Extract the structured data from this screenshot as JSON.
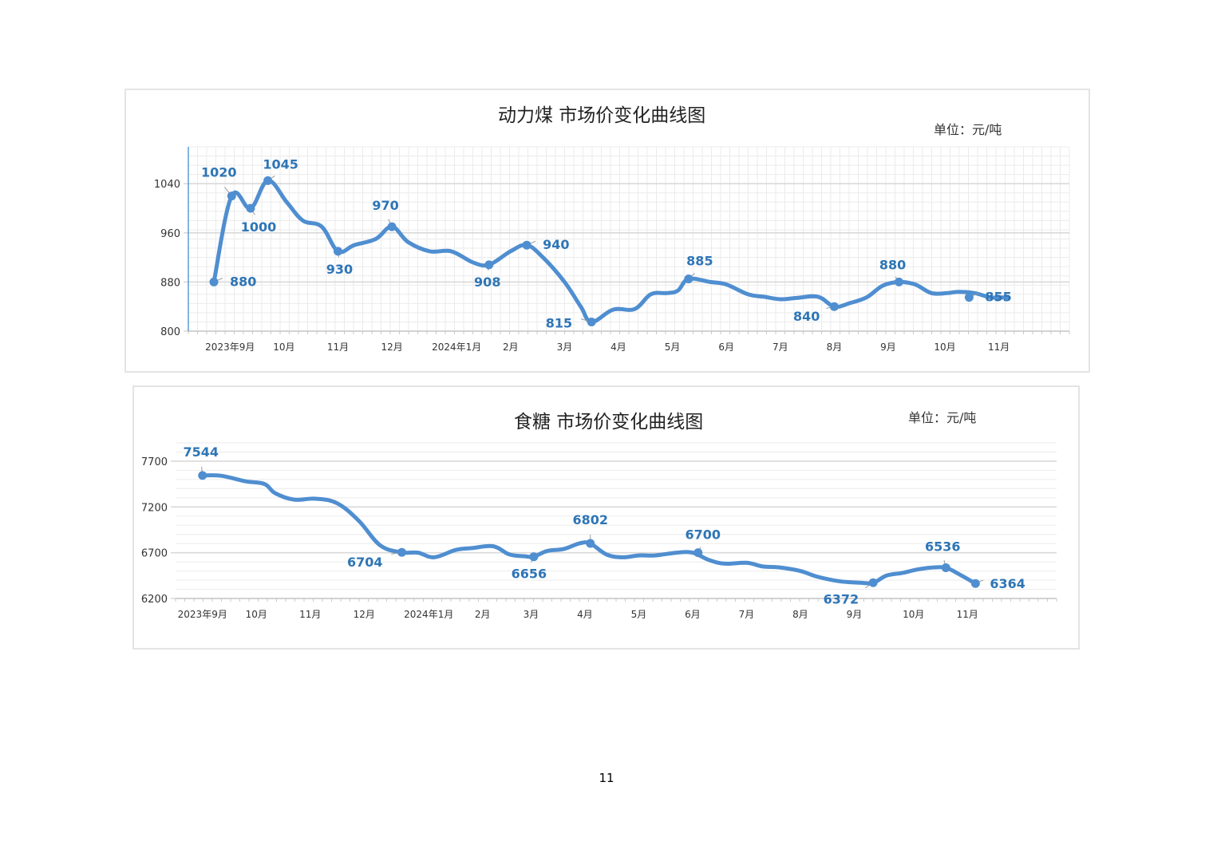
{
  "page_number": "11",
  "chart_data": [
    {
      "type": "line",
      "title": "动力煤  市场价变化曲线图",
      "unit": "单位：元/吨",
      "line_color": "#4f8ed0",
      "label_color": "#2e75b6",
      "grid": "minor",
      "ylim": [
        800,
        1100
      ],
      "y_ticks": [
        800,
        880,
        960,
        1040
      ],
      "x_range": [
        0,
        16.7
      ],
      "x_tick_labels": [
        {
          "x": 0.3,
          "label": "2023年9月"
        },
        {
          "x": 1.3,
          "label": "10月"
        },
        {
          "x": 2.3,
          "label": "11月"
        },
        {
          "x": 3.3,
          "label": "12月"
        },
        {
          "x": 4.5,
          "label": "2024年1月"
        },
        {
          "x": 5.5,
          "label": "2月"
        },
        {
          "x": 6.5,
          "label": "3月"
        },
        {
          "x": 7.5,
          "label": "4月"
        },
        {
          "x": 8.5,
          "label": "5月"
        },
        {
          "x": 9.5,
          "label": "6月"
        },
        {
          "x": 10.5,
          "label": "7月"
        },
        {
          "x": 11.5,
          "label": "8月"
        },
        {
          "x": 12.5,
          "label": "9月"
        },
        {
          "x": 13.55,
          "label": "10月"
        },
        {
          "x": 14.55,
          "label": "11月"
        }
      ],
      "series": [
        {
          "x": [
            0,
            0.33,
            0.68,
            1.0,
            1.35,
            1.65,
            2.0,
            2.3,
            2.6,
            3.0,
            3.3,
            3.6,
            4.0,
            4.4,
            4.8,
            5.1,
            5.5,
            5.8,
            6.1,
            6.5,
            6.8,
            7.0,
            7.4,
            7.8,
            8.1,
            8.4,
            8.6,
            8.8,
            9.2,
            9.5,
            9.9,
            10.2,
            10.5,
            10.8,
            11.2,
            11.5,
            11.8,
            12.1,
            12.4,
            12.7,
            13.0,
            13.3,
            13.6,
            13.8,
            14.1,
            14.4,
            14.7
          ],
          "values": [
            880,
            1020,
            1000,
            1045,
            1010,
            980,
            970,
            930,
            940,
            950,
            970,
            945,
            930,
            930,
            912,
            908,
            930,
            940,
            920,
            880,
            840,
            815,
            835,
            836,
            860,
            862,
            866,
            885,
            880,
            876,
            860,
            856,
            852,
            854,
            856,
            840,
            846,
            855,
            874,
            880,
            876,
            862,
            862,
            864,
            862,
            855,
            855
          ]
        }
      ],
      "markers": [
        {
          "x": 0,
          "value": 880,
          "label": "880"
        },
        {
          "x": 0.33,
          "value": 1020,
          "label": "1020"
        },
        {
          "x": 0.68,
          "value": 1000,
          "label": "1000"
        },
        {
          "x": 1.0,
          "value": 1045,
          "label": "1045"
        },
        {
          "x": 2.3,
          "value": 930,
          "label": "930"
        },
        {
          "x": 3.3,
          "value": 970,
          "label": "970"
        },
        {
          "x": 5.1,
          "value": 908,
          "label": "908"
        },
        {
          "x": 5.8,
          "value": 940,
          "label": "940"
        },
        {
          "x": 7.0,
          "value": 815,
          "label": "815"
        },
        {
          "x": 8.8,
          "value": 885,
          "label": "885"
        },
        {
          "x": 11.5,
          "value": 840,
          "label": "840"
        },
        {
          "x": 12.7,
          "value": 880,
          "label": "880"
        },
        {
          "x": 14.0,
          "value": 855,
          "label": "855"
        }
      ]
    },
    {
      "type": "line",
      "title": "食糖  市场价变化曲线图",
      "unit": "单位：元/吨",
      "line_color": "#4f8ed0",
      "label_color": "#2e75b6",
      "grid": "horizontal",
      "ylim": [
        6200,
        7900
      ],
      "y_ticks": [
        6200,
        6700,
        7200,
        7700
      ],
      "x_range": [
        0,
        16.7
      ],
      "x_tick_labels": [
        {
          "x": 0.5,
          "label": "2023年9月"
        },
        {
          "x": 1.5,
          "label": "10月"
        },
        {
          "x": 2.5,
          "label": "11月"
        },
        {
          "x": 3.5,
          "label": "12月"
        },
        {
          "x": 4.7,
          "label": "2024年1月"
        },
        {
          "x": 5.7,
          "label": "2月"
        },
        {
          "x": 6.6,
          "label": "3月"
        },
        {
          "x": 7.6,
          "label": "4月"
        },
        {
          "x": 8.6,
          "label": "5月"
        },
        {
          "x": 9.6,
          "label": "6月"
        },
        {
          "x": 10.6,
          "label": "7月"
        },
        {
          "x": 11.6,
          "label": "8月"
        },
        {
          "x": 12.6,
          "label": "9月"
        },
        {
          "x": 13.7,
          "label": "10月"
        },
        {
          "x": 14.7,
          "label": "11月"
        }
      ],
      "series": [
        {
          "x": [
            0.5,
            0.85,
            1.3,
            1.65,
            1.85,
            2.2,
            2.6,
            3.0,
            3.4,
            3.8,
            4.2,
            4.5,
            4.8,
            5.2,
            5.5,
            5.9,
            6.2,
            6.5,
            6.65,
            6.9,
            7.2,
            7.5,
            7.7,
            8.0,
            8.3,
            8.6,
            8.9,
            9.3,
            9.6,
            9.9,
            10.2,
            10.6,
            10.9,
            11.2,
            11.6,
            11.9,
            12.3,
            12.7,
            12.95,
            13.2,
            13.5,
            13.8,
            14.1,
            14.3,
            14.5,
            14.85
          ],
          "values": [
            7544,
            7540,
            7480,
            7450,
            7350,
            7280,
            7290,
            7240,
            7050,
            6780,
            6704,
            6700,
            6650,
            6730,
            6750,
            6770,
            6680,
            6660,
            6656,
            6720,
            6740,
            6802,
            6800,
            6680,
            6650,
            6670,
            6670,
            6700,
            6700,
            6620,
            6580,
            6590,
            6550,
            6540,
            6500,
            6440,
            6390,
            6372,
            6372,
            6450,
            6480,
            6520,
            6540,
            6536,
            6480,
            6364
          ]
        }
      ],
      "markers": [
        {
          "x": 0.5,
          "value": 7544,
          "label": "7544"
        },
        {
          "x": 4.2,
          "value": 6704,
          "label": "6704"
        },
        {
          "x": 6.65,
          "value": 6656,
          "label": "6656"
        },
        {
          "x": 7.7,
          "value": 6802,
          "label": "6802"
        },
        {
          "x": 9.7,
          "value": 6700,
          "label": "6700"
        },
        {
          "x": 12.95,
          "value": 6372,
          "label": "6372"
        },
        {
          "x": 14.3,
          "value": 6536,
          "label": "6536"
        },
        {
          "x": 14.85,
          "value": 6364,
          "label": "6364"
        }
      ]
    }
  ]
}
